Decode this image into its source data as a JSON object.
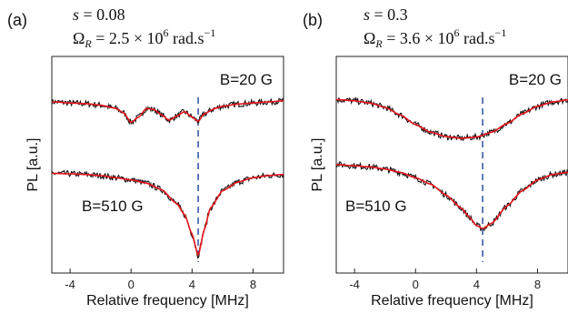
{
  "chart_data": [
    {
      "type": "line",
      "panel_label": "(a)",
      "params": {
        "s_symbol": "s",
        "s_value": "= 0.08",
        "omega_symbol": "Ω",
        "omega_sub": "R",
        "omega_value": "= 2.5 × 10",
        "omega_exp": "6",
        "omega_unit": " rad.s",
        "omega_unit_exp": "−1"
      },
      "xlabel": "Relative frequency [MHz]",
      "ylabel": "PL [a.u.]",
      "xlim": [
        -5.2,
        10
      ],
      "ylim": [
        0,
        1
      ],
      "xticks": [
        -4,
        0,
        4,
        8
      ],
      "xtick_labels": [
        "-4",
        "0",
        "4",
        "8"
      ],
      "marker_x": 4.4,
      "series": [
        {
          "label": "B=20 G",
          "measured_color": "#111111",
          "fit_color": "#e8141c",
          "x": [
            -5,
            -4,
            -3,
            -2,
            -1,
            -0.5,
            0,
            0.5,
            1,
            1.5,
            2,
            2.5,
            3,
            3.5,
            4,
            4.4,
            4.8,
            5.5,
            6,
            7,
            8,
            9,
            10
          ],
          "y": [
            0.79,
            0.785,
            0.782,
            0.775,
            0.76,
            0.74,
            0.695,
            0.72,
            0.76,
            0.755,
            0.73,
            0.705,
            0.725,
            0.745,
            0.72,
            0.7,
            0.735,
            0.76,
            0.77,
            0.78,
            0.785,
            0.79,
            0.795
          ]
        },
        {
          "label": "B=510 G",
          "measured_color": "#111111",
          "fit_color": "#e8141c",
          "x": [
            -5,
            -4,
            -3,
            -2,
            -1,
            0,
            1,
            2,
            3,
            3.5,
            4,
            4.4,
            4.8,
            5.2,
            6,
            7,
            8,
            9,
            10
          ],
          "y": [
            0.46,
            0.458,
            0.455,
            0.45,
            0.44,
            0.43,
            0.415,
            0.385,
            0.32,
            0.27,
            0.18,
            0.08,
            0.2,
            0.3,
            0.38,
            0.42,
            0.44,
            0.45,
            0.455
          ]
        }
      ]
    },
    {
      "type": "line",
      "panel_label": "(b)",
      "params": {
        "s_symbol": "s",
        "s_value": "= 0.3",
        "omega_symbol": "Ω",
        "omega_sub": "R",
        "omega_value": "= 3.6 × 10",
        "omega_exp": "6",
        "omega_unit": " rad.s",
        "omega_unit_exp": "−1"
      },
      "xlabel": "Relative frequency [MHz]",
      "ylabel": "PL [a.u.]",
      "xlim": [
        -5.2,
        10
      ],
      "ylim": [
        0,
        1
      ],
      "xticks": [
        -4,
        0,
        4,
        8
      ],
      "xtick_labels": [
        "-4",
        "0",
        "4",
        "8"
      ],
      "marker_x": 4.4,
      "series": [
        {
          "label": "B=20 G",
          "measured_color": "#111111",
          "fit_color": "#e8141c",
          "x": [
            -5,
            -4,
            -3,
            -2,
            -1,
            0,
            1,
            2,
            3,
            4,
            5,
            6,
            7,
            8,
            9,
            10
          ],
          "y": [
            0.8,
            0.795,
            0.785,
            0.765,
            0.73,
            0.685,
            0.65,
            0.63,
            0.622,
            0.628,
            0.65,
            0.69,
            0.735,
            0.77,
            0.79,
            0.8
          ]
        },
        {
          "label": "B=510 G",
          "measured_color": "#111111",
          "fit_color": "#e8141c",
          "x": [
            -5,
            -4,
            -3,
            -2,
            -1,
            0,
            1,
            2,
            3,
            3.5,
            4,
            4.4,
            5,
            6,
            7,
            8,
            9,
            10
          ],
          "y": [
            0.5,
            0.495,
            0.49,
            0.48,
            0.465,
            0.44,
            0.41,
            0.36,
            0.3,
            0.26,
            0.22,
            0.205,
            0.23,
            0.31,
            0.38,
            0.43,
            0.455,
            0.465
          ]
        }
      ]
    }
  ]
}
